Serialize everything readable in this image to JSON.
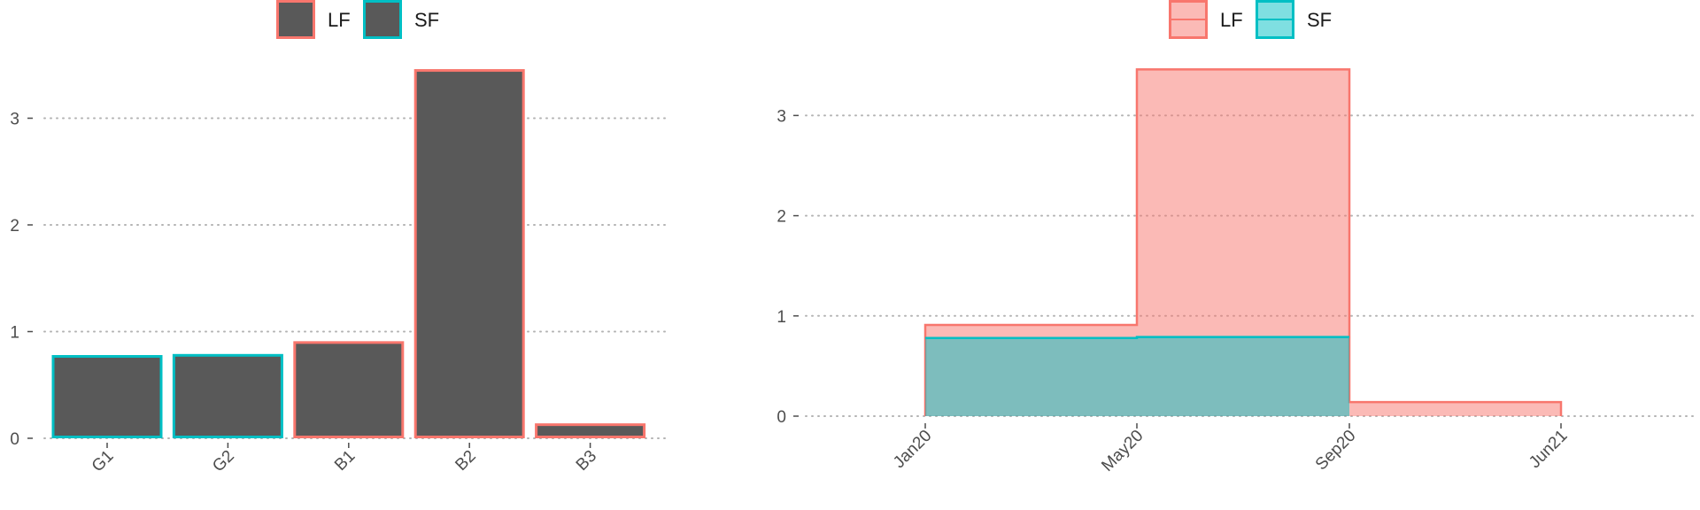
{
  "colors": {
    "lf": "#F8766D",
    "sf": "#00BFC4",
    "bar_fill": "#595959",
    "grid": "#b3b3b3",
    "axis_text": "#4d4d4d"
  },
  "legend": {
    "lf_label": "LF",
    "sf_label": "SF"
  },
  "chart_data": [
    {
      "type": "bar",
      "categories": [
        "G1",
        "G2",
        "B1",
        "B2",
        "B3"
      ],
      "values": [
        0.78,
        0.79,
        0.91,
        3.46,
        0.14
      ],
      "group": [
        "SF",
        "SF",
        "LF",
        "LF",
        "LF"
      ],
      "yticks": [
        0,
        1,
        2,
        3
      ],
      "ylim": [
        0,
        3.5
      ],
      "xlabel": "",
      "ylabel": "",
      "title": "",
      "grid": "horizontal dotted",
      "legend_position": "top"
    },
    {
      "type": "area",
      "step": true,
      "x": [
        "Jan20",
        "May20",
        "Sep20",
        "Jun21"
      ],
      "series": [
        {
          "name": "LF",
          "values": [
            0.91,
            3.46,
            0.14,
            0.14
          ]
        },
        {
          "name": "SF",
          "values": [
            0.78,
            0.79,
            0.79,
            null
          ]
        }
      ],
      "yticks": [
        0,
        1,
        2,
        3
      ],
      "ylim": [
        0,
        3.5
      ],
      "xlabel": "",
      "ylabel": "",
      "title": "",
      "grid": "horizontal dotted",
      "legend_position": "top"
    }
  ]
}
